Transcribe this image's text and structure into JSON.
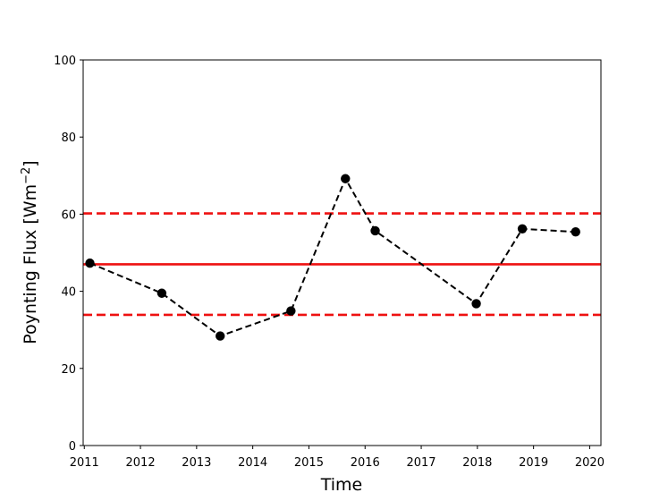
{
  "chart_data": {
    "type": "line",
    "title": "",
    "xlabel": "Time",
    "ylabel": "Poynting Flux [Wm",
    "ylabel_superscript": "−2",
    "ylabel_suffix": "]",
    "xlim": [
      2010.98,
      2020.2
    ],
    "ylim": [
      0,
      100
    ],
    "x_ticks": [
      2011,
      2012,
      2013,
      2014,
      2015,
      2016,
      2017,
      2018,
      2019,
      2020
    ],
    "y_ticks": [
      0,
      20,
      40,
      60,
      80,
      100
    ],
    "grid": false,
    "legend": "none",
    "series": [
      {
        "style": "dashed-line-with-markers",
        "color": "#000000",
        "x": [
          2011.1,
          2012.38,
          2013.42,
          2014.68,
          2015.65,
          2016.18,
          2017.98,
          2018.8,
          2019.75
        ],
        "y": [
          47.3,
          39.5,
          28.4,
          34.9,
          69.2,
          55.7,
          36.8,
          56.2,
          55.4
        ]
      }
    ],
    "reference_lines": [
      {
        "y": 47.0,
        "style": "solid",
        "color": "#ee1111"
      },
      {
        "y": 60.2,
        "style": "dashed",
        "color": "#ee1111"
      },
      {
        "y": 33.9,
        "style": "dashed",
        "color": "#ee1111"
      }
    ]
  }
}
